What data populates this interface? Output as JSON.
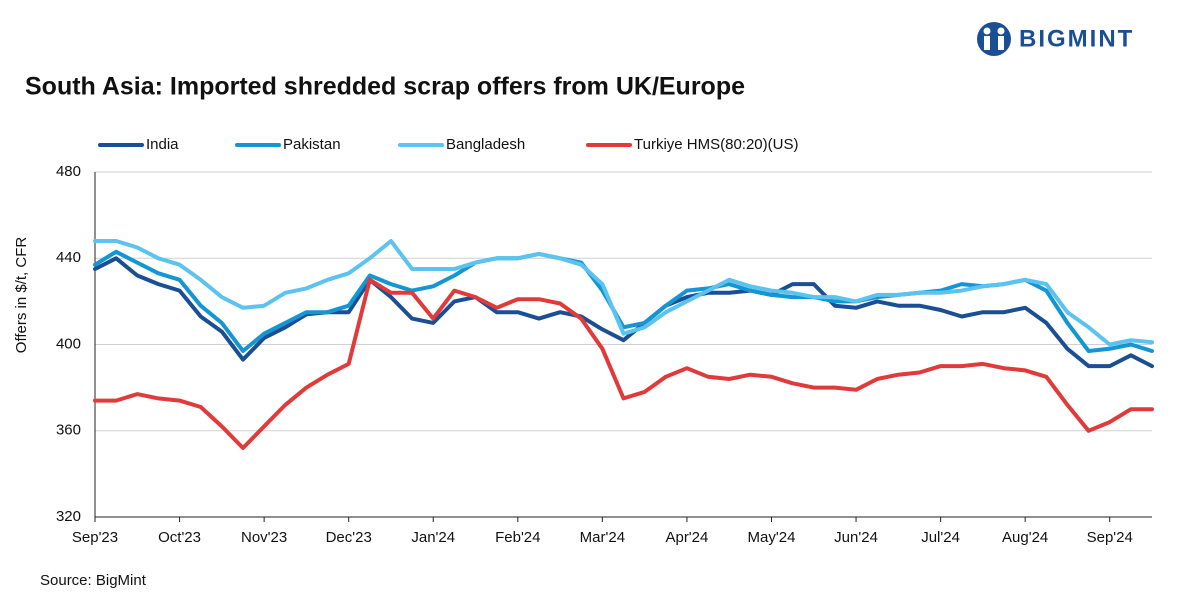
{
  "chart_data": {
    "type": "line",
    "brand": "BIGMINT",
    "title": "South Asia: Imported shredded scrap offers from UK/Europe",
    "ylabel": "Offers in $/t, CFR",
    "source": "Source: BigMint",
    "legend": "top",
    "grid": true,
    "ylim": [
      320,
      480
    ],
    "yticks": [
      320,
      360,
      400,
      440,
      480
    ],
    "categories": [
      "Sep'23",
      null,
      null,
      null,
      "Oct'23",
      null,
      null,
      null,
      "Nov'23",
      null,
      null,
      null,
      "Dec'23",
      null,
      null,
      null,
      "Jan'24",
      null,
      null,
      null,
      "Feb'24",
      null,
      null,
      null,
      "Mar'24",
      null,
      null,
      null,
      "Apr'24",
      null,
      null,
      null,
      "May'24",
      null,
      null,
      null,
      "Jun'24",
      null,
      null,
      null,
      "Jul'24",
      null,
      null,
      null,
      "Aug'24",
      null,
      null,
      null,
      "Sep'24",
      null,
      null
    ],
    "series": [
      {
        "name": "India",
        "color": "#1a4f95",
        "values": [
          435,
          440,
          432,
          428,
          425,
          413,
          406,
          393,
          403,
          408,
          414,
          415,
          415,
          430,
          422,
          412,
          410,
          420,
          422,
          415,
          415,
          412,
          415,
          413,
          407,
          402,
          410,
          418,
          422,
          424,
          424,
          425,
          423,
          428,
          428,
          418,
          417,
          420,
          418,
          418,
          416,
          413,
          415,
          415,
          417,
          410,
          398,
          390,
          390,
          395,
          390
        ]
      },
      {
        "name": "Pakistan",
        "color": "#1496d4",
        "values": [
          437,
          443,
          438,
          433,
          430,
          418,
          410,
          397,
          405,
          410,
          415,
          415,
          418,
          432,
          428,
          425,
          427,
          432,
          438,
          440,
          440,
          442,
          440,
          438,
          425,
          408,
          410,
          418,
          425,
          426,
          428,
          425,
          423,
          422,
          422,
          420,
          420,
          422,
          423,
          424,
          425,
          428,
          427,
          428,
          430,
          425,
          410,
          397,
          398,
          400,
          397
        ]
      },
      {
        "name": "Bangladesh",
        "color": "#5bc3ee",
        "values": [
          448,
          448,
          445,
          440,
          437,
          430,
          422,
          417,
          418,
          424,
          426,
          430,
          433,
          440,
          448,
          435,
          435,
          435,
          438,
          440,
          440,
          442,
          440,
          437,
          428,
          405,
          408,
          415,
          420,
          425,
          430,
          427,
          425,
          424,
          422,
          422,
          420,
          423,
          423,
          424,
          424,
          425,
          427,
          428,
          430,
          428,
          415,
          408,
          400,
          402,
          401
        ]
      },
      {
        "name": "Turkiye HMS(80:20)(US)",
        "color": "#e03a3a",
        "values": [
          374,
          374,
          377,
          375,
          374,
          371,
          362,
          352,
          362,
          372,
          380,
          386,
          391,
          430,
          424,
          424,
          412,
          425,
          422,
          417,
          421,
          421,
          419,
          412,
          398,
          375,
          378,
          385,
          389,
          385,
          384,
          386,
          385,
          382,
          380,
          380,
          379,
          384,
          386,
          387,
          390,
          390,
          391,
          389,
          388,
          385,
          372,
          360,
          364,
          370,
          370
        ]
      }
    ]
  }
}
